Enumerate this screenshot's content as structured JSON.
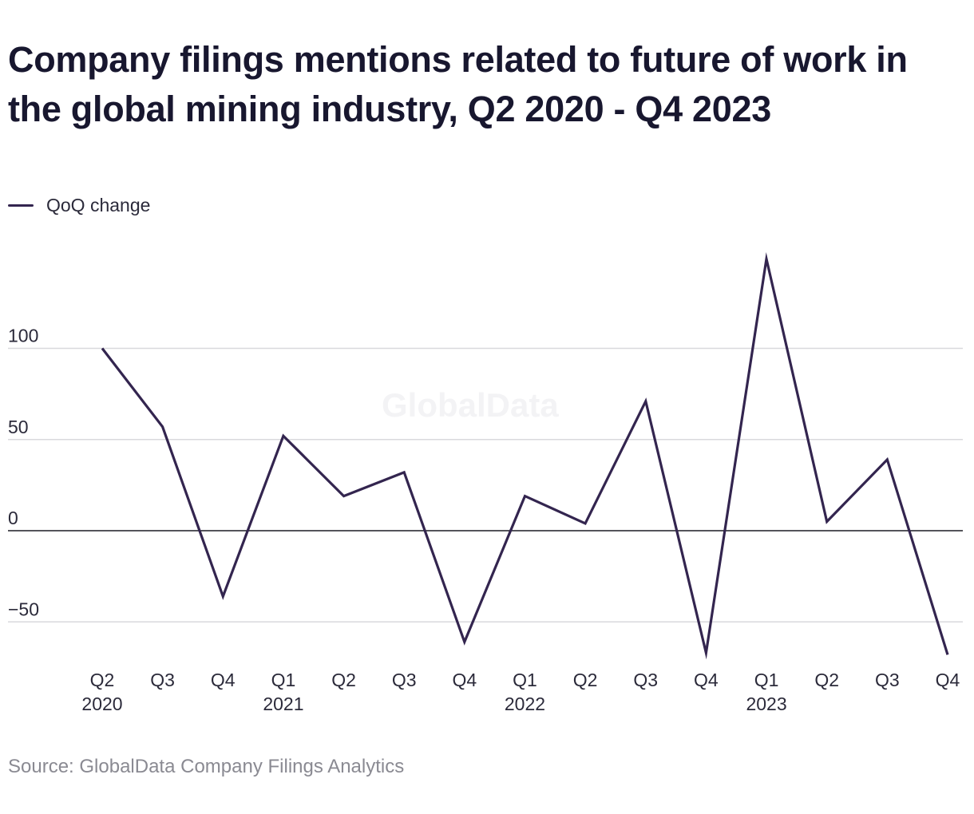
{
  "title": "Company filings mentions related to future of work in the global mining industry, Q2 2020 - Q4 2023",
  "legend": {
    "label": "QoQ change"
  },
  "watermark": "GlobalData",
  "source": "Source: GlobalData Company Filings Analytics",
  "colors": {
    "line": "#33254f",
    "grid": "#d9d9dc",
    "zero_line": "#1b1b25",
    "text": "#2b2a3a"
  },
  "chart_data": {
    "type": "line",
    "title": "Company filings mentions related to future of work in the global mining industry, Q2 2020 - Q4 2023",
    "xlabel": "",
    "ylabel": "",
    "ylim": [
      -68,
      150
    ],
    "yticks": [
      100,
      50,
      0,
      -50
    ],
    "ytick_labels": [
      "100",
      "50",
      "0",
      "−50"
    ],
    "grid": true,
    "legend_position": "top-left",
    "categories": [
      [
        "Q2",
        "2020"
      ],
      [
        "Q3",
        ""
      ],
      [
        "Q4",
        ""
      ],
      [
        "Q1",
        "2021"
      ],
      [
        "Q2",
        ""
      ],
      [
        "Q3",
        ""
      ],
      [
        "Q4",
        ""
      ],
      [
        "Q1",
        "2022"
      ],
      [
        "Q2",
        ""
      ],
      [
        "Q3",
        ""
      ],
      [
        "Q4",
        ""
      ],
      [
        "Q1",
        "2023"
      ],
      [
        "Q2",
        ""
      ],
      [
        "Q3",
        ""
      ],
      [
        "Q4",
        ""
      ]
    ],
    "series": [
      {
        "name": "QoQ change",
        "values": [
          100,
          57,
          -36,
          52,
          19,
          32,
          -61,
          19,
          4,
          71,
          -67,
          149,
          5,
          39,
          -68
        ]
      }
    ]
  }
}
